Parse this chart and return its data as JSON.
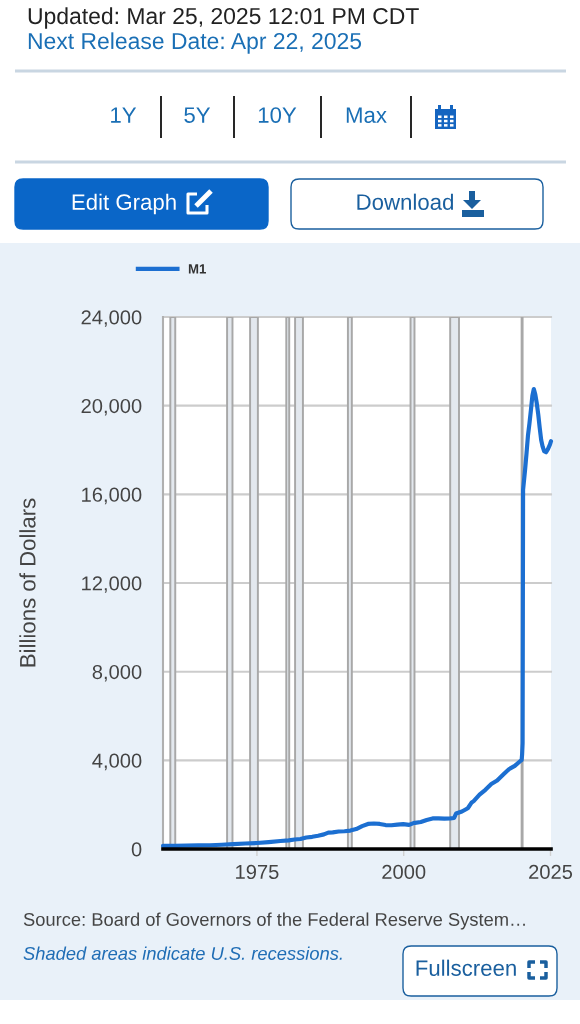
{
  "chart_data": {
    "type": "line",
    "ylabel": "Billions of Dollars",
    "annotations": [
      "Updated: Mar 25, 2025 12:01 PM CDT",
      "Next Release Date: Apr 22, 2025",
      "1Y",
      "5Y",
      "10Y",
      "Max",
      "Edit Graph",
      "Download",
      "Source: Board of Governors of the Federal Reserve System…",
      "Shaded areas indicate U.S. recessions.",
      "Fullscreen"
    ],
    "x": [
      "1959-01",
      "1961-01",
      "1963-01",
      "1965-01",
      "1967-01",
      "1969-01",
      "1971-01",
      "1973-01",
      "1975-01",
      "1977-01",
      "1979-01",
      "1980-06",
      "1981-06",
      "1982-06",
      "1983-06",
      "1984-06",
      "1985-06",
      "1986-06",
      "1987-03",
      "1987-12",
      "1988-12",
      "1989-12",
      "1990-12",
      "1991-12",
      "1992-12",
      "1993-12",
      "1994-12",
      "1995-12",
      "1996-12",
      "1997-12",
      "1998-12",
      "1999-12",
      "2000-12",
      "2001-09",
      "2001-12",
      "2002-12",
      "2003-12",
      "2004-12",
      "2005-12",
      "2006-12",
      "2007-12",
      "2008-08",
      "2008-12",
      "2009-12",
      "2010-12",
      "2011-08",
      "2011-12",
      "2012-12",
      "2013-12",
      "2014-12",
      "2015-12",
      "2016-12",
      "2017-12",
      "2018-12",
      "2019-12",
      "2020-02",
      "2020-03",
      "2020-04",
      "2020-05",
      "2020-09",
      "2020-12",
      "2021-03",
      "2021-06",
      "2021-09",
      "2021-12",
      "2022-03",
      "2022-06",
      "2022-09",
      "2022-12",
      "2023-03",
      "2023-06",
      "2023-09",
      "2023-12",
      "2024-04",
      "2024-08",
      "2024-12",
      "2025-02"
    ],
    "series": [
      {
        "name": "M1",
        "color": "#1c6fd1",
        "values": [
          140,
          140,
          150,
          160,
          170,
          190,
          220,
          250,
          270,
          310,
          360,
          390,
          430,
          450,
          520,
          550,
          600,
          660,
          740,
          750,
          790,
          800,
          830,
          900,
          1030,
          1130,
          1150,
          1130,
          1080,
          1070,
          1100,
          1120,
          1090,
          1170,
          1180,
          1220,
          1310,
          1380,
          1380,
          1370,
          1380,
          1400,
          1600,
          1690,
          1840,
          2100,
          2160,
          2450,
          2670,
          2930,
          3090,
          3350,
          3600,
          3750,
          3980,
          4010,
          4260,
          4780,
          16200,
          17100,
          17850,
          18650,
          19200,
          19800,
          20450,
          20750,
          20500,
          20100,
          19600,
          19000,
          18450,
          18150,
          17950,
          17900,
          18050,
          18250,
          18400
        ]
      }
    ],
    "xlim": [
      "1959-01",
      "2025-02"
    ],
    "xticks": [
      "1975",
      "2000",
      "2025"
    ],
    "ylim": [
      0,
      24000
    ],
    "yticks": [
      0,
      {
        "value": 4000,
        "label": "4,000"
      },
      {
        "value": 8000,
        "label": "8,000"
      },
      {
        "value": 12000,
        "label": "12,000"
      },
      {
        "value": 16000,
        "label": "16,000"
      },
      {
        "value": 20000,
        "label": "20,000"
      },
      {
        "value": 24000,
        "label": "24,000"
      }
    ],
    "grid": "y",
    "legend": "top left",
    "bands": [
      {
        "axis": "x",
        "from": "1960-04",
        "to": "1961-02",
        "color": "#e3e8ee"
      },
      {
        "axis": "x",
        "from": "1969-12",
        "to": "1970-11",
        "color": "#e3e8ee"
      },
      {
        "axis": "x",
        "from": "1973-11",
        "to": "1975-03",
        "color": "#e3e8ee"
      },
      {
        "axis": "x",
        "from": "1980-01",
        "to": "1980-07",
        "color": "#e3e8ee"
      },
      {
        "axis": "x",
        "from": "1981-07",
        "to": "1982-11",
        "color": "#e3e8ee"
      },
      {
        "axis": "x",
        "from": "1990-07",
        "to": "1991-03",
        "color": "#e3e8ee"
      },
      {
        "axis": "x",
        "from": "2001-03",
        "to": "2001-11",
        "color": "#e3e8ee"
      },
      {
        "axis": "x",
        "from": "2007-12",
        "to": "2009-06",
        "color": "#e3e8ee"
      },
      {
        "axis": "x",
        "from": "2020-02",
        "to": "2020-04",
        "color": "#e3e8ee"
      }
    ]
  }
}
